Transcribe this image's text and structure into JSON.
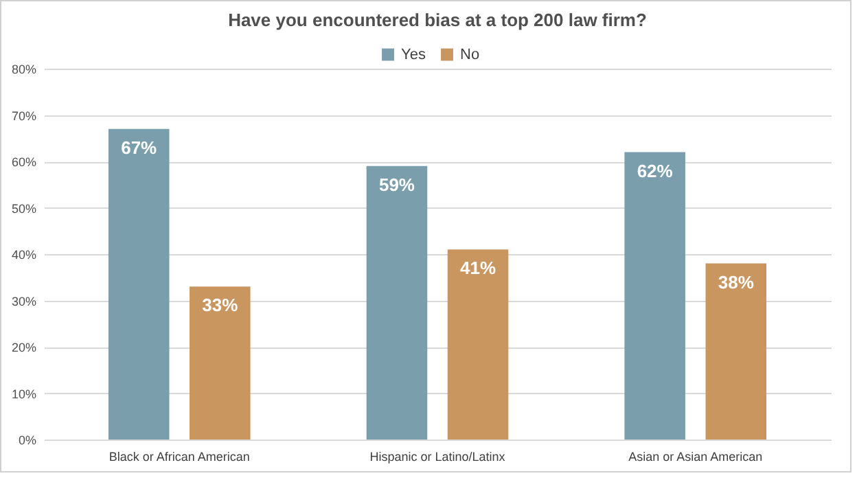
{
  "chart_data": {
    "type": "bar",
    "title": "Have you encountered bias at a top 200 law firm?",
    "categories": [
      "Black or African American",
      "Hispanic or Latino/Latinx",
      "Asian or Asian American"
    ],
    "series": [
      {
        "name": "Yes",
        "color": "#7a9eab",
        "values": [
          67,
          59,
          62
        ],
        "value_labels": [
          "67%",
          "59%",
          "62%"
        ]
      },
      {
        "name": "No",
        "color": "#c9965f",
        "values": [
          33,
          41,
          38
        ],
        "value_labels": [
          "33%",
          "41%",
          "38%"
        ]
      }
    ],
    "ylim": [
      0,
      80
    ],
    "yticks": [
      {
        "value": 0,
        "label": "0%"
      },
      {
        "value": 10,
        "label": "10%"
      },
      {
        "value": 20,
        "label": "20%"
      },
      {
        "value": 30,
        "label": "30%"
      },
      {
        "value": 40,
        "label": "40%"
      },
      {
        "value": 50,
        "label": "50%"
      },
      {
        "value": 60,
        "label": "60%"
      },
      {
        "value": 70,
        "label": "70%"
      },
      {
        "value": 80,
        "label": "80%"
      }
    ],
    "grid": "y",
    "legend": "top"
  }
}
